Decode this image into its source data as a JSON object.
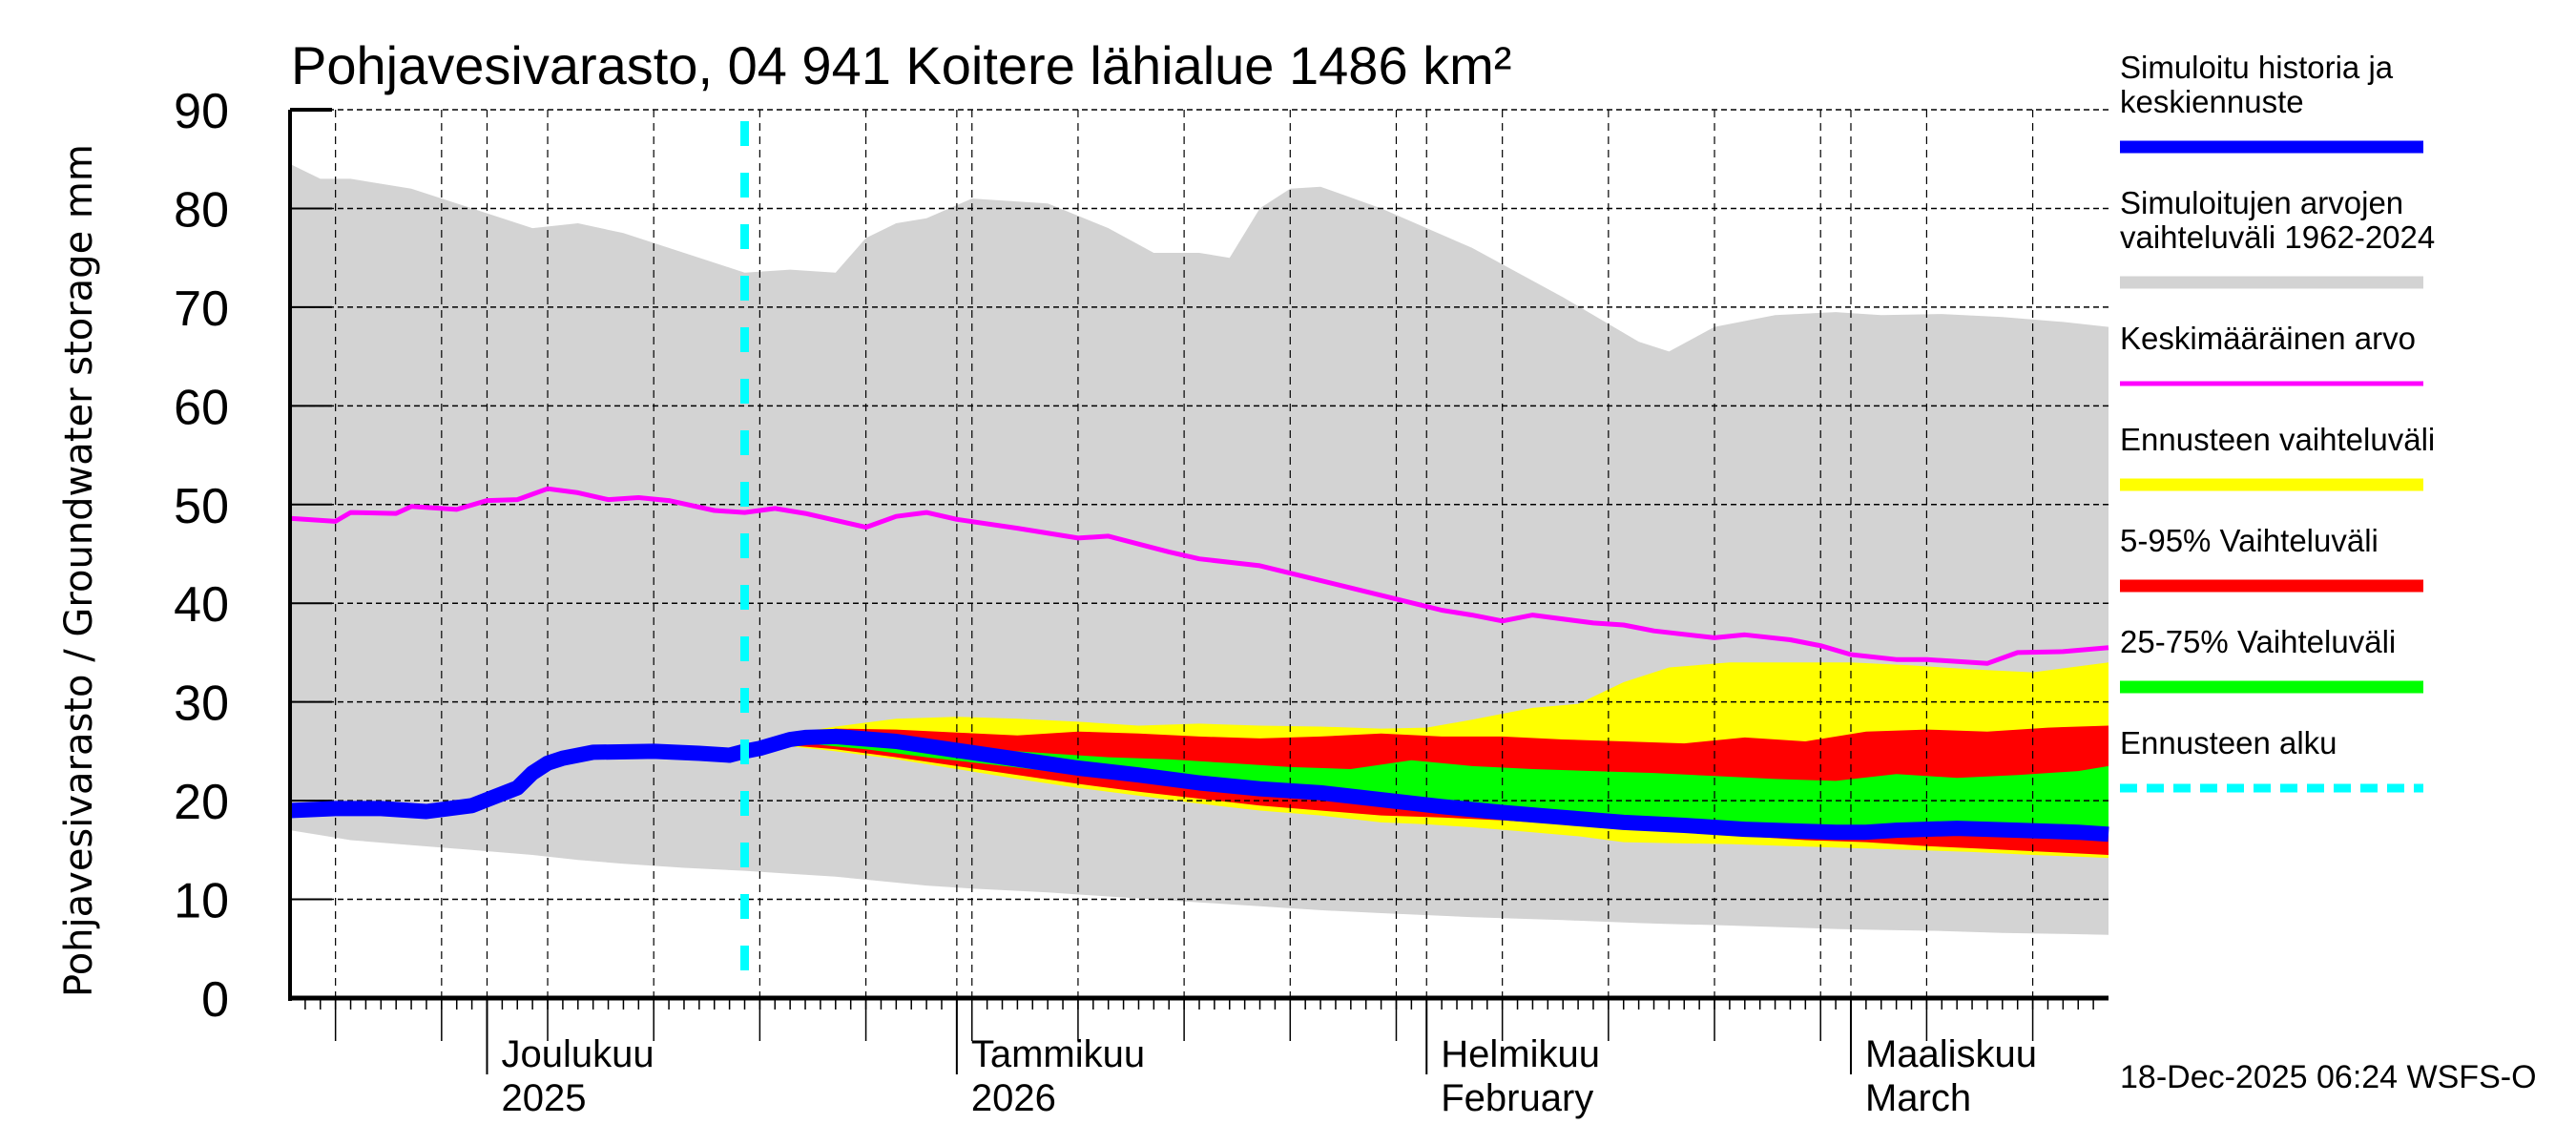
{
  "chart_data": {
    "type": "area",
    "title": "Pohjavesivarasto, 04 941 Koitere lähialue 1486 km²",
    "ylabel": "Pohjavesivarasto / Groundwater storage   mm",
    "yunit_label": "mm",
    "ylim": [
      0,
      90
    ],
    "yticks": [
      0,
      10,
      20,
      30,
      40,
      50,
      60,
      70,
      80,
      90
    ],
    "grid": true,
    "x_start_date": "2025-11-18",
    "x_end_date": "2026-03-18",
    "x_unit": "days since 2025-11-18",
    "xlim": [
      0,
      120
    ],
    "forecast_start_day": 30,
    "month_labels": [
      {
        "day": 13,
        "line1": "Joulukuu",
        "line2": "2025"
      },
      {
        "day": 44,
        "line1": "Tammikuu",
        "line2": "2026"
      },
      {
        "day": 75,
        "line1": "Helmikuu",
        "line2": "February"
      },
      {
        "day": 103,
        "line1": "Maaliskuu",
        "line2": "March"
      }
    ],
    "series": [
      {
        "name": "Simuloitujen arvojen vaihteluväli 1962-2024",
        "kind": "band",
        "color": "#d3d3d3",
        "x": [
          0,
          2,
          4,
          8,
          12,
          16,
          19,
          22,
          26,
          30,
          33,
          36,
          38,
          40,
          42,
          45,
          50,
          54,
          57,
          60,
          62,
          64,
          66,
          68,
          72,
          78,
          84,
          89,
          91,
          94,
          98,
          102,
          105,
          109,
          113,
          117,
          120
        ],
        "upper": [
          84.5,
          83,
          83,
          82,
          80,
          78,
          78.5,
          77.5,
          75.5,
          73.5,
          73.8,
          73.5,
          77,
          78.5,
          79,
          81,
          80.5,
          78,
          75.5,
          75.5,
          75,
          80,
          82,
          82.2,
          80,
          76,
          71,
          66.5,
          65.5,
          68,
          69.2,
          69.5,
          69.2,
          69.3,
          69,
          68.5,
          68
        ],
        "lower": [
          17,
          16.5,
          16,
          15.5,
          15,
          14.5,
          14,
          13.6,
          13.2,
          12.9,
          12.6,
          12.3,
          12,
          11.7,
          11.4,
          11.1,
          10.7,
          10.3,
          10,
          9.7,
          9.5,
          9.3,
          9.1,
          8.9,
          8.6,
          8.2,
          7.9,
          7.6,
          7.5,
          7.4,
          7.2,
          7.0,
          6.9,
          6.8,
          6.6,
          6.5,
          6.4
        ]
      },
      {
        "name": "Ennusteen vaihteluväli",
        "kind": "band",
        "color": "#ffff00",
        "x": [
          30,
          33,
          36,
          40,
          44,
          48,
          52,
          56,
          60,
          64,
          68,
          72,
          75,
          78,
          82,
          85,
          88,
          91,
          95,
          99,
          103,
          107,
          111,
          115,
          120
        ],
        "upper": [
          25.3,
          26.8,
          27.5,
          28.3,
          28.5,
          28.3,
          28,
          27.6,
          27.8,
          27.6,
          27.5,
          27.3,
          27.4,
          28.2,
          29.4,
          29.8,
          32.0,
          33.5,
          34.0,
          34.0,
          34.0,
          33.7,
          33.3,
          33.0,
          34.0
        ],
        "lower": [
          25.3,
          25.5,
          25.0,
          24.2,
          23.2,
          22.2,
          21.3,
          20.5,
          19.7,
          19.0,
          18.5,
          17.8,
          17.6,
          17.3,
          16.8,
          16.4,
          15.8,
          15.7,
          15.6,
          15.4,
          15.2,
          15.0,
          14.8,
          14.5,
          14.2
        ]
      },
      {
        "name": "5-95% Vaihteluväli",
        "kind": "band",
        "color": "#ff0000",
        "x": [
          30,
          33,
          36,
          40,
          44,
          48,
          52,
          56,
          60,
          64,
          68,
          72,
          76,
          80,
          84,
          88,
          92,
          96,
          100,
          104,
          108,
          112,
          116,
          120
        ],
        "upper": [
          25.3,
          26.5,
          27.3,
          27.2,
          26.9,
          26.6,
          27.0,
          26.8,
          26.5,
          26.3,
          26.5,
          26.8,
          26.5,
          26.5,
          26.2,
          26.0,
          25.8,
          26.4,
          26.0,
          27.0,
          27.2,
          27.0,
          27.4,
          27.6
        ],
        "lower": [
          25.3,
          25.6,
          25.2,
          24.4,
          23.5,
          22.6,
          21.7,
          20.9,
          20.2,
          19.5,
          19.0,
          18.5,
          18.3,
          18.0,
          17.6,
          17.2,
          16.8,
          16.4,
          16.0,
          15.8,
          15.4,
          15.1,
          14.8,
          14.5
        ]
      },
      {
        "name": "25-75% Vaihteluväli",
        "kind": "band",
        "color": "#00ff00",
        "x": [
          30,
          34,
          38,
          42,
          46,
          50,
          54,
          58,
          62,
          66,
          70,
          74,
          78,
          82,
          86,
          90,
          94,
          98,
          102,
          106,
          110,
          114,
          118,
          120
        ],
        "upper": [
          25.3,
          26.2,
          26.0,
          25.6,
          25.2,
          24.8,
          24.4,
          24.2,
          23.8,
          23.4,
          23.2,
          24.1,
          23.5,
          23.2,
          23.0,
          22.8,
          22.5,
          22.2,
          22.0,
          22.7,
          22.3,
          22.6,
          23.0,
          23.5
        ],
        "lower": [
          25.3,
          25.8,
          25.2,
          24.4,
          23.7,
          23.0,
          22.3,
          21.6,
          21.0,
          20.5,
          20.2,
          19.8,
          19.4,
          19.0,
          18.6,
          18.3,
          18.0,
          17.7,
          17.4,
          17.2,
          17.0,
          16.8,
          16.6,
          16.5
        ]
      },
      {
        "name": "Keskimääräinen arvo",
        "kind": "line",
        "color": "#ff00ff",
        "x": [
          0,
          3,
          4,
          7,
          8,
          11,
          13,
          15,
          17,
          19,
          21,
          23,
          25,
          28,
          30,
          32,
          34,
          38,
          40,
          42,
          44,
          48,
          52,
          54,
          58,
          60,
          64,
          68,
          72,
          76,
          78,
          80,
          82,
          86,
          88,
          90,
          94,
          96,
          99,
          101,
          103,
          106,
          108,
          112,
          114,
          117,
          120
        ],
        "y": [
          48.6,
          48.3,
          49.2,
          49.1,
          49.8,
          49.5,
          50.4,
          50.5,
          51.6,
          51.2,
          50.5,
          50.7,
          50.4,
          49.4,
          49.2,
          49.6,
          49.1,
          47.7,
          48.8,
          49.2,
          48.5,
          47.6,
          46.6,
          46.8,
          45.2,
          44.5,
          43.8,
          42.3,
          40.8,
          39.3,
          38.8,
          38.2,
          38.8,
          38.0,
          37.8,
          37.2,
          36.5,
          36.8,
          36.3,
          35.7,
          34.8,
          34.3,
          34.3,
          33.9,
          35.0,
          35.1,
          35.5
        ]
      },
      {
        "name": "Simuloitu historia ja keskiennuste",
        "kind": "line",
        "color": "#0000ff",
        "x": [
          0,
          3,
          6,
          9,
          12,
          15,
          16,
          17,
          18,
          20,
          24,
          27,
          29,
          30,
          31,
          33,
          34,
          36,
          40,
          44,
          48,
          52,
          56,
          60,
          64,
          68,
          72,
          76,
          80,
          84,
          88,
          92,
          96,
          100,
          102,
          104,
          106,
          110,
          114,
          118,
          120
        ],
        "y": [
          19.0,
          19.2,
          19.2,
          18.9,
          19.5,
          21.3,
          22.8,
          23.8,
          24.3,
          24.9,
          25.0,
          24.8,
          24.6,
          25.0,
          25.3,
          26.2,
          26.4,
          26.5,
          26.0,
          25.1,
          24.2,
          23.3,
          22.6,
          21.8,
          21.2,
          20.8,
          20.1,
          19.4,
          18.8,
          18.3,
          17.8,
          17.5,
          17.1,
          16.9,
          16.8,
          16.8,
          17.0,
          17.2,
          17.0,
          16.8,
          16.6
        ]
      }
    ],
    "legend": {
      "placement": "right",
      "entries": [
        {
          "label_lines": [
            "Simuloitu historia ja",
            "keskiennuste"
          ],
          "color": "#0000ff",
          "style": "thick"
        },
        {
          "label_lines": [
            "Simuloitujen arvojen",
            "vaihteluväli 1962-2024"
          ],
          "color": "#d3d3d3",
          "style": "thick"
        },
        {
          "label_lines": [
            "Keskimääräinen arvo"
          ],
          "color": "#ff00ff",
          "style": "thin"
        },
        {
          "label_lines": [
            "Ennusteen vaihteluväli"
          ],
          "color": "#ffff00",
          "style": "thick"
        },
        {
          "label_lines": [
            "5-95% Vaihteluväli"
          ],
          "color": "#ff0000",
          "style": "thick"
        },
        {
          "label_lines": [
            "25-75% Vaihteluväli"
          ],
          "color": "#00ff00",
          "style": "thick"
        },
        {
          "label_lines": [
            "Ennusteen alku"
          ],
          "color": "#00ffff",
          "style": "dashed"
        }
      ]
    },
    "timestamp": "18-Dec-2025 06:24 WSFS-O"
  }
}
